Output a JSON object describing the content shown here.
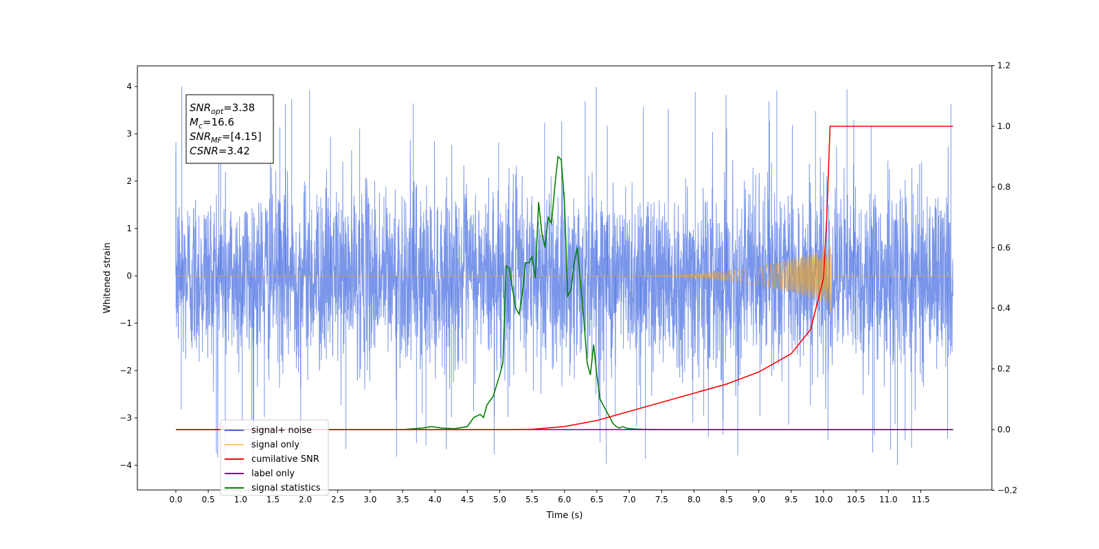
{
  "chart_data": {
    "type": "line",
    "xlabel": "Time (s)",
    "ylabel": "Whitened strain",
    "xlim": [
      -0.6,
      12.5
    ],
    "ylim": [
      -4.5,
      4.4
    ],
    "y2lim": [
      -0.2,
      1.2
    ],
    "x_ticks": [
      "0.0",
      "0.5",
      "1.0",
      "1.5",
      "2.0",
      "2.5",
      "3.0",
      "3.5",
      "4.0",
      "4.5",
      "5.0",
      "5.5",
      "6.0",
      "6.5",
      "7.0",
      "7.5",
      "8.0",
      "8.5",
      "9.0",
      "9.5",
      "10.0",
      "10.5",
      "11.0",
      "11.5"
    ],
    "y_ticks": [
      "4",
      "3",
      "2",
      "1",
      "0",
      "−1",
      "−2",
      "−3",
      "−4"
    ],
    "y2_ticks": [
      "1.2",
      "1.0",
      "0.8",
      "0.6",
      "0.4",
      "0.2",
      "0.0",
      "−0.2"
    ],
    "legend_position": "lower-left",
    "annotation": {
      "lines": [
        {
          "sym": "SNR",
          "sub": "opt",
          "val": "=3.38"
        },
        {
          "sym": "M",
          "sub": "c",
          "val": "=16.6"
        },
        {
          "sym": "SNR",
          "sub": "MF",
          "val": "=[4.15]"
        },
        {
          "sym": "CSNR",
          "sub": "",
          "val": "=3.42"
        }
      ]
    },
    "series": [
      {
        "name": "signal+ noise",
        "color": "#4169e1",
        "axis": "left",
        "x_range": [
          0,
          12.0
        ],
        "amplitude_range": [
          -4.1,
          4.0
        ],
        "note_visible": "dense whitened noise"
      },
      {
        "name": "signal only",
        "color": "#ffa500",
        "axis": "left",
        "chirp_start": 6.5,
        "chirp_end": 10.1,
        "peak_amplitude": 0.62
      },
      {
        "name": "cumilative SNR",
        "color": "#ff0000",
        "axis": "right",
        "x": [
          0,
          5.0,
          5.5,
          6.0,
          6.5,
          7.0,
          7.5,
          8.0,
          8.5,
          9.0,
          9.5,
          9.8,
          10.0,
          10.05,
          10.1,
          11.0,
          12.0
        ],
        "values": [
          0,
          0,
          0.001,
          0.01,
          0.03,
          0.06,
          0.09,
          0.12,
          0.15,
          0.19,
          0.25,
          0.33,
          0.5,
          0.7,
          1.0,
          1.0,
          1.0
        ]
      },
      {
        "name": "label only",
        "color": "#800080",
        "axis": "right",
        "x": [
          0,
          12.0
        ],
        "values": [
          0,
          0
        ]
      },
      {
        "name": "signal statistics",
        "color": "#008000",
        "axis": "right",
        "x": [
          0,
          3.5,
          3.8,
          3.95,
          4.1,
          4.3,
          4.5,
          4.6,
          4.7,
          4.75,
          4.8,
          4.9,
          5.0,
          5.05,
          5.1,
          5.15,
          5.2,
          5.25,
          5.3,
          5.35,
          5.4,
          5.45,
          5.5,
          5.55,
          5.6,
          5.65,
          5.7,
          5.75,
          5.8,
          5.85,
          5.9,
          5.95,
          6.0,
          6.05,
          6.1,
          6.15,
          6.2,
          6.25,
          6.3,
          6.35,
          6.4,
          6.45,
          6.5,
          6.55,
          6.6,
          6.65,
          6.7,
          6.75,
          6.8,
          6.85,
          6.9,
          6.95,
          7.0,
          7.1,
          7.2,
          7.4,
          7.7,
          8.0,
          12.0
        ],
        "values": [
          0,
          0,
          0.005,
          0.01,
          0.005,
          0.003,
          0.01,
          0.04,
          0.05,
          0.04,
          0.08,
          0.11,
          0.18,
          0.22,
          0.54,
          0.53,
          0.46,
          0.4,
          0.38,
          0.45,
          0.55,
          0.55,
          0.57,
          0.5,
          0.75,
          0.65,
          0.6,
          0.7,
          0.68,
          0.8,
          0.9,
          0.89,
          0.75,
          0.44,
          0.46,
          0.55,
          0.6,
          0.48,
          0.36,
          0.22,
          0.18,
          0.28,
          0.18,
          0.1,
          0.08,
          0.06,
          0.04,
          0.02,
          0.01,
          0.005,
          0.01,
          0.005,
          0.003,
          0.002,
          0.001,
          0.0005,
          0,
          0,
          0
        ]
      }
    ]
  }
}
